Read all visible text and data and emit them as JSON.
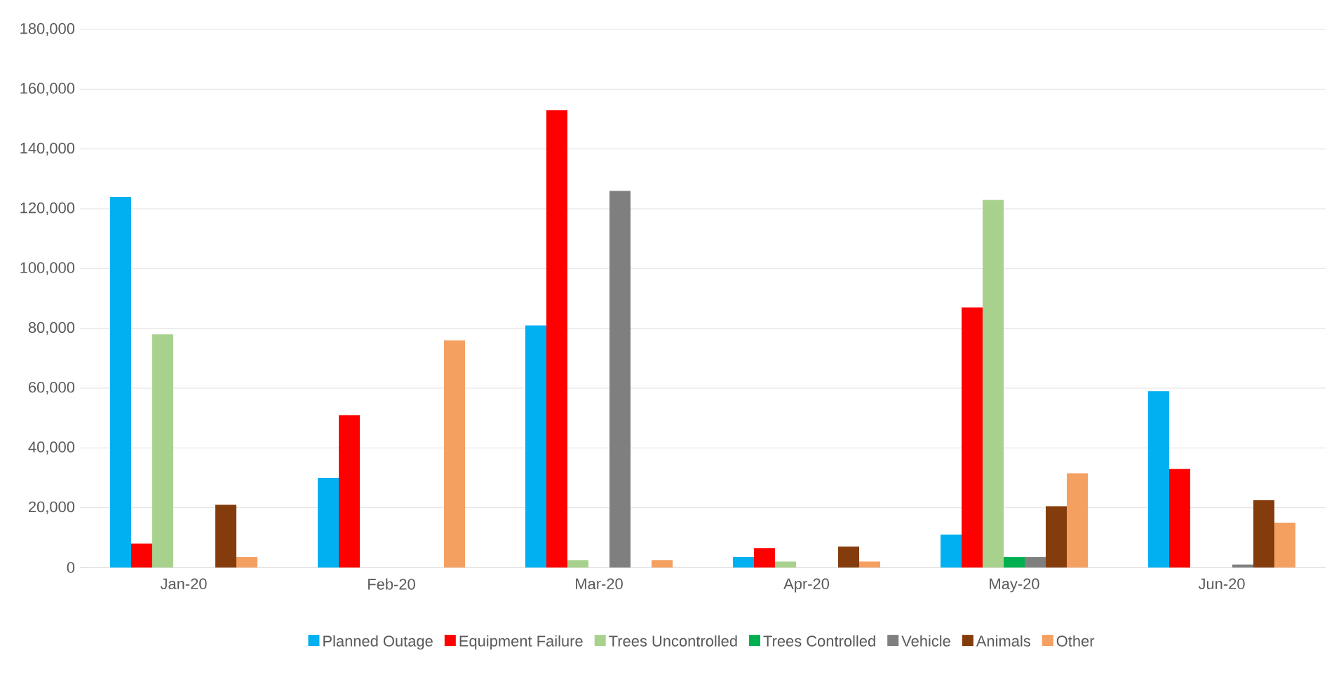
{
  "chart_data": {
    "type": "bar",
    "categories": [
      "Jan-20",
      "Feb-20",
      "Mar-20",
      "Apr-20",
      "May-20",
      "Jun-20"
    ],
    "series": [
      {
        "name": "Planned Outage",
        "color": "#00b0f0",
        "values": [
          124000,
          30000,
          81000,
          3500,
          11000,
          59000
        ]
      },
      {
        "name": "Equipment Failure",
        "color": "#ff0000",
        "values": [
          8000,
          51000,
          153000,
          6500,
          87000,
          33000
        ]
      },
      {
        "name": "Trees Uncontrolled",
        "color": "#a9d18e",
        "values": [
          78000,
          0,
          2500,
          2000,
          123000,
          0
        ]
      },
      {
        "name": "Trees Controlled",
        "color": "#00b050",
        "values": [
          0,
          0,
          0,
          0,
          3500,
          0
        ]
      },
      {
        "name": "Vehicle",
        "color": "#7f7f7f",
        "values": [
          0,
          0,
          126000,
          0,
          3500,
          1000
        ]
      },
      {
        "name": "Animals",
        "color": "#843c0c",
        "values": [
          21000,
          0,
          0,
          7000,
          20500,
          22500
        ]
      },
      {
        "name": "Other",
        "color": "#f4a061",
        "values": [
          3500,
          76000,
          2500,
          2000,
          31500,
          15000
        ]
      }
    ],
    "ylim": [
      0,
      180000
    ],
    "yticks": [
      {
        "value": 0,
        "label": "0"
      },
      {
        "value": 20000,
        "label": "20,000"
      },
      {
        "value": 40000,
        "label": "40,000"
      },
      {
        "value": 60000,
        "label": "60,000"
      },
      {
        "value": 80000,
        "label": "80,000"
      },
      {
        "value": 100000,
        "label": "100,000"
      },
      {
        "value": 120000,
        "label": "120,000"
      },
      {
        "value": 140000,
        "label": "140,000"
      },
      {
        "value": 160000,
        "label": "160,000"
      },
      {
        "value": 180000,
        "label": "180,000"
      }
    ],
    "grid": "y",
    "legend": "bottom"
  }
}
